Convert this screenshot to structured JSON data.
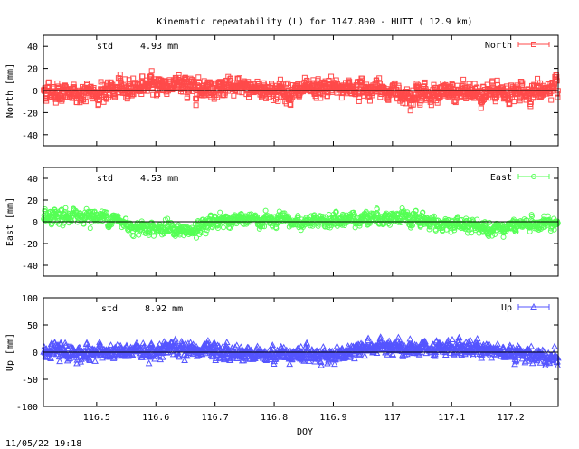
{
  "title": "Kinematic repeatability (L) for 1147.800 - HUTT  ( 12.9 km)",
  "timestamp": "11/05/22 19:18",
  "chart_data": [
    {
      "type": "line",
      "id": "north",
      "series_name": "North",
      "ylabel": "North [mm]",
      "color": "#ff4a4a",
      "marker": "square",
      "std_label": "std",
      "std_value": "4.93 mm",
      "ylim": [
        -50,
        50
      ],
      "yticks": [
        -40,
        -20,
        0,
        20,
        40
      ],
      "xlim": [
        116.41,
        117.28
      ],
      "xticks": [
        116.5,
        116.6,
        116.7,
        116.8,
        116.9,
        117,
        117.1,
        117.2
      ],
      "show_xticklabels": false,
      "noise": 4.5,
      "trend": [
        [
          116.41,
          0
        ],
        [
          116.47,
          -4
        ],
        [
          116.55,
          2
        ],
        [
          116.6,
          6
        ],
        [
          116.68,
          3
        ],
        [
          116.76,
          2
        ],
        [
          116.84,
          -2
        ],
        [
          116.9,
          3
        ],
        [
          116.97,
          1
        ],
        [
          117.03,
          -3
        ],
        [
          117.12,
          -2
        ],
        [
          117.2,
          -3
        ],
        [
          117.28,
          2
        ]
      ]
    },
    {
      "type": "line",
      "id": "east",
      "series_name": "East",
      "ylabel": "East [mm]",
      "color": "#55ff55",
      "marker": "circle",
      "std_label": "std",
      "std_value": "4.53 mm",
      "ylim": [
        -50,
        50
      ],
      "yticks": [
        -40,
        -20,
        0,
        20,
        40
      ],
      "xlim": [
        116.41,
        117.28
      ],
      "xticks": [
        116.5,
        116.6,
        116.7,
        116.8,
        116.9,
        117,
        117.1,
        117.2
      ],
      "show_xticklabels": false,
      "noise": 3.5,
      "trend": [
        [
          116.41,
          2
        ],
        [
          116.47,
          6
        ],
        [
          116.52,
          4
        ],
        [
          116.56,
          -4
        ],
        [
          116.62,
          -6
        ],
        [
          116.66,
          -10
        ],
        [
          116.7,
          2
        ],
        [
          116.78,
          1
        ],
        [
          116.86,
          -1
        ],
        [
          116.92,
          2
        ],
        [
          116.97,
          5
        ],
        [
          117.02,
          3
        ],
        [
          117.07,
          -1
        ],
        [
          117.12,
          -3
        ],
        [
          117.18,
          -5
        ],
        [
          117.28,
          -1
        ]
      ]
    },
    {
      "type": "line",
      "id": "up",
      "series_name": "Up",
      "ylabel": "Up [mm]",
      "color": "#5555ff",
      "marker": "triangle",
      "std_label": "std",
      "std_value": "8.92 mm",
      "ylim": [
        -100,
        100
      ],
      "yticks": [
        -100,
        -50,
        0,
        50,
        100
      ],
      "xlim": [
        116.41,
        117.28
      ],
      "xticks": [
        116.5,
        116.6,
        116.7,
        116.8,
        116.9,
        117,
        117.1,
        117.2
      ],
      "xticklabels": [
        "116.5",
        "116.6",
        "116.7",
        "116.8",
        "116.9",
        "117",
        "117.1",
        "117.2"
      ],
      "show_xticklabels": true,
      "xlabel": "DOY",
      "noise": 7.5,
      "trend": [
        [
          116.41,
          2
        ],
        [
          116.5,
          -2
        ],
        [
          116.58,
          2
        ],
        [
          116.62,
          8
        ],
        [
          116.68,
          2
        ],
        [
          116.76,
          -4
        ],
        [
          116.84,
          -2
        ],
        [
          116.9,
          -6
        ],
        [
          116.96,
          10
        ],
        [
          117.02,
          6
        ],
        [
          117.08,
          4
        ],
        [
          117.13,
          10
        ],
        [
          117.2,
          0
        ],
        [
          117.28,
          -10
        ]
      ]
    }
  ]
}
